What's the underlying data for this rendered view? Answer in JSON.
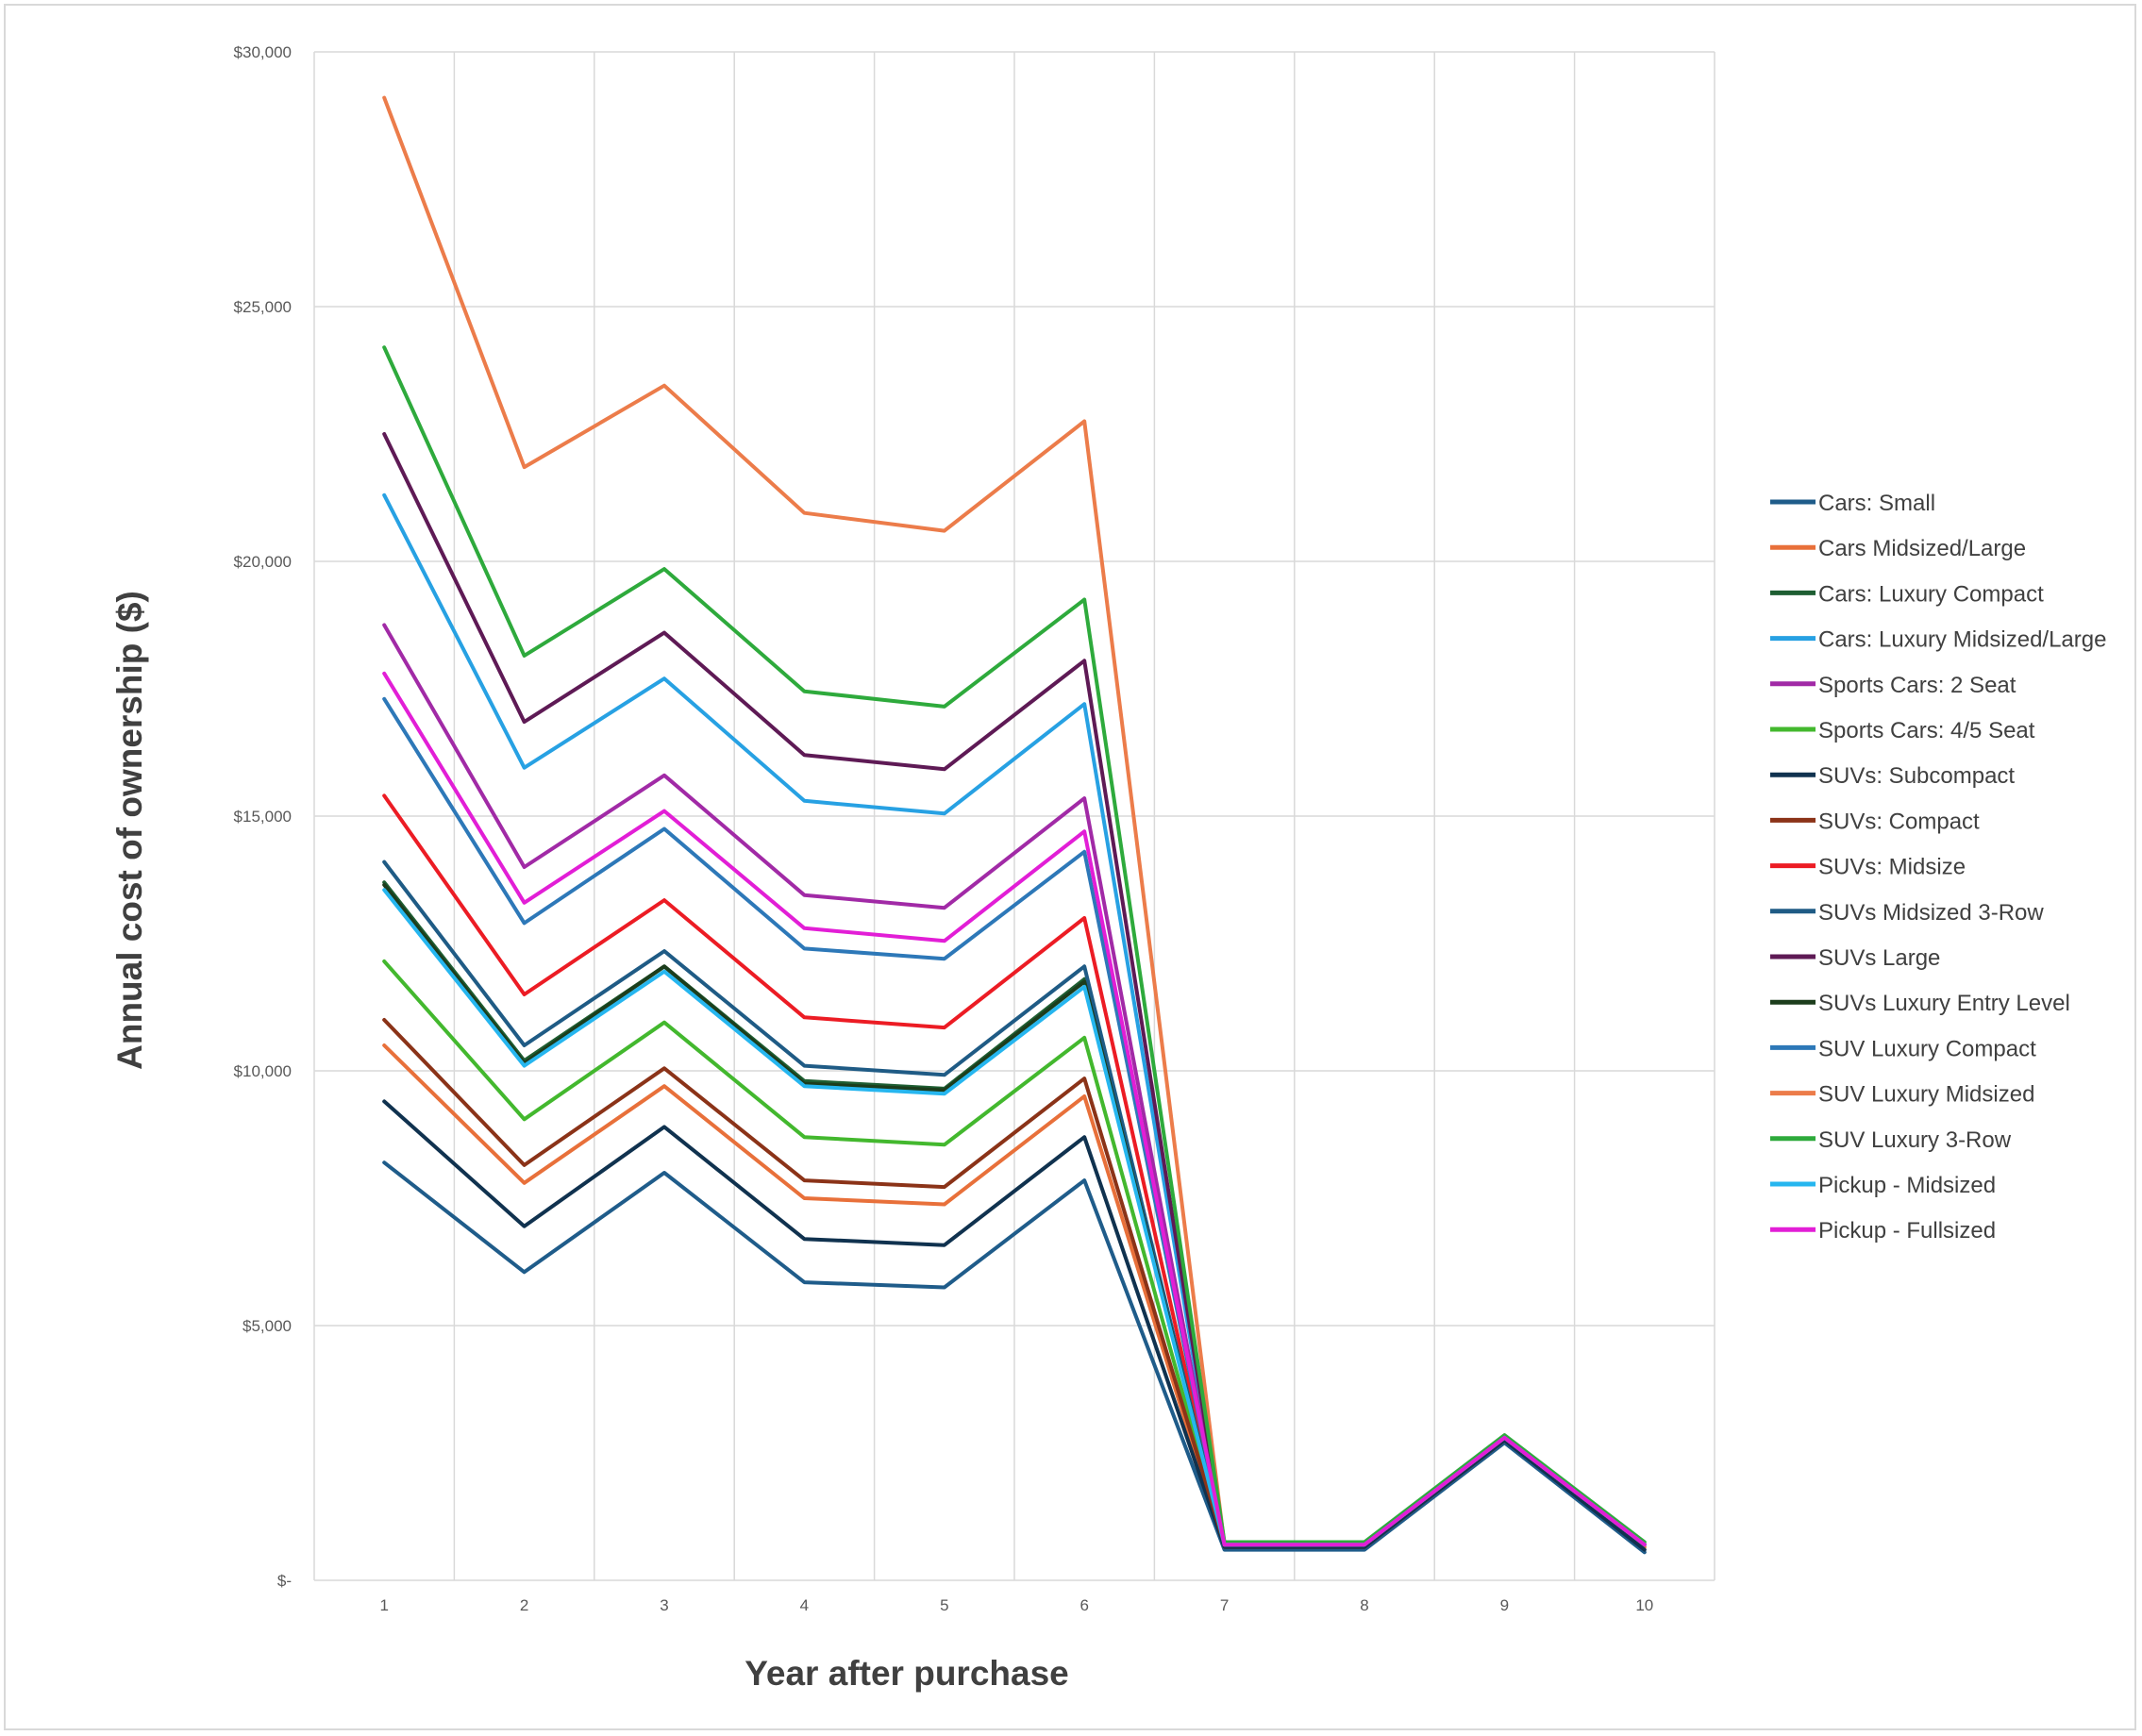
{
  "chart_data": {
    "type": "line",
    "title": "",
    "xlabel": "Year after purchase",
    "ylabel": "Annual cost of ownership ($)",
    "x": [
      1,
      2,
      3,
      4,
      5,
      6,
      7,
      8,
      9,
      10
    ],
    "x_tick_labels": [
      "1",
      "2",
      "3",
      "4",
      "5",
      "6",
      "7",
      "8",
      "9",
      "10"
    ],
    "ylim": [
      0,
      30000
    ],
    "y_ticks": [
      0,
      5000,
      10000,
      15000,
      20000,
      25000,
      30000
    ],
    "y_tick_labels": [
      "$-",
      "$5,000",
      "$10,000",
      "$15,000",
      "$20,000",
      "$25,000",
      "$30,000"
    ],
    "grid": true,
    "legend_position": "right",
    "series": [
      {
        "name": "Cars:  Small",
        "color": "#1f5c8a",
        "values": [
          8200,
          6050,
          8000,
          5850,
          5750,
          7850,
          600,
          600,
          2700,
          550
        ]
      },
      {
        "name": "Cars Midsized/Large",
        "color": "#e8703a",
        "values": [
          10500,
          7800,
          9700,
          7500,
          7380,
          9500,
          650,
          650,
          2750,
          650
        ]
      },
      {
        "name": "Cars: Luxury Compact",
        "color": "#1e5e32",
        "values": [
          13700,
          10200,
          12050,
          9800,
          9650,
          11800,
          700,
          700,
          2800,
          700
        ]
      },
      {
        "name": "Cars: Luxury Midsized/Large",
        "color": "#27a1e3",
        "values": [
          21300,
          15950,
          17700,
          15300,
          15050,
          17200,
          700,
          700,
          2800,
          700
        ]
      },
      {
        "name": "Sports Cars: 2 Seat",
        "color": "#a12aa6",
        "values": [
          18750,
          14000,
          15800,
          13450,
          13200,
          15350,
          700,
          700,
          2800,
          700
        ]
      },
      {
        "name": "Sports Cars: 4/5 Seat",
        "color": "#43b82e",
        "values": [
          12150,
          9050,
          10950,
          8700,
          8550,
          10650,
          700,
          700,
          2800,
          700
        ]
      },
      {
        "name": "SUVs: Subcompact",
        "color": "#10324f",
        "values": [
          9400,
          6950,
          8900,
          6700,
          6580,
          8700,
          650,
          650,
          2750,
          600
        ]
      },
      {
        "name": "SUVs: Compact",
        "color": "#8b3318",
        "values": [
          11000,
          8150,
          10050,
          7850,
          7720,
          9850,
          700,
          700,
          2800,
          700
        ]
      },
      {
        "name": "SUVs: Midsize",
        "color": "#ec1c24",
        "values": [
          15400,
          11500,
          13350,
          11050,
          10850,
          13000,
          700,
          700,
          2800,
          700
        ]
      },
      {
        "name": "SUVs Midsized 3-Row",
        "color": "#1f5b85",
        "values": [
          14100,
          10500,
          12350,
          10100,
          9920,
          12050,
          700,
          700,
          2800,
          700
        ]
      },
      {
        "name": "SUVs Large",
        "color": "#5e1a55",
        "values": [
          22500,
          16850,
          18600,
          16200,
          15920,
          18050,
          700,
          700,
          2800,
          700
        ]
      },
      {
        "name": "SUVs Luxury Entry Level",
        "color": "#1c3d1c",
        "values": [
          13650,
          10150,
          12050,
          9750,
          9620,
          11750,
          700,
          700,
          2800,
          700
        ]
      },
      {
        "name": "SUV Luxury Compact",
        "color": "#2d78b8",
        "values": [
          17300,
          12900,
          14750,
          12400,
          12200,
          14300,
          700,
          700,
          2800,
          700
        ]
      },
      {
        "name": "SUV Luxury Midsized",
        "color": "#ec7c4a",
        "values": [
          29100,
          21850,
          23450,
          20950,
          20600,
          22750,
          700,
          700,
          2800,
          700
        ]
      },
      {
        "name": "SUV Luxury 3-Row",
        "color": "#2eaa3c",
        "values": [
          24200,
          18150,
          19850,
          17450,
          17150,
          19250,
          750,
          750,
          2850,
          750
        ]
      },
      {
        "name": "Pickup - Midsized",
        "color": "#26b6ef",
        "values": [
          13550,
          10100,
          11950,
          9700,
          9550,
          11650,
          700,
          700,
          2800,
          700
        ]
      },
      {
        "name": "Pickup - Fullsized",
        "color": "#e21ed6",
        "values": [
          17800,
          13300,
          15100,
          12800,
          12550,
          14700,
          700,
          700,
          2800,
          700
        ]
      }
    ]
  }
}
